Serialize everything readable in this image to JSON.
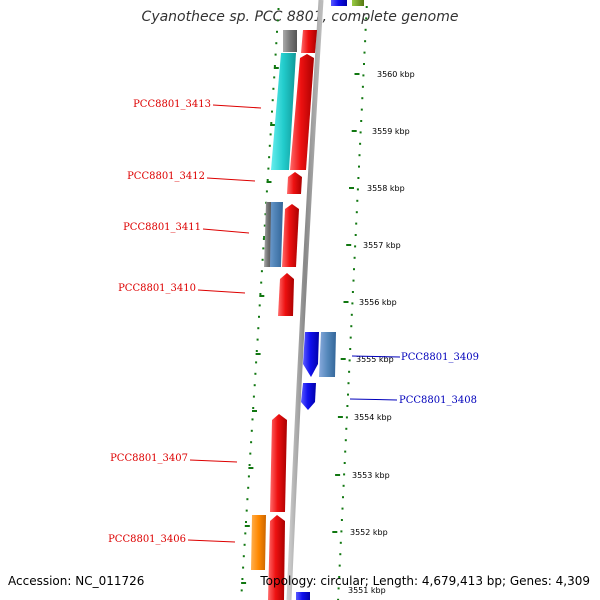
{
  "title": "Cyanothece sp. PCC 8801, complete genome",
  "footer": {
    "accession": "Accession: NC_011726",
    "topology": "Topology: circular; Length: 4,679,413 bp; Genes: 4,309"
  },
  "kbp_ticks": [
    {
      "label": "3560 kbp",
      "kbp": 3560
    },
    {
      "label": "3559 kbp",
      "kbp": 3559
    },
    {
      "label": "3558 kbp",
      "kbp": 3558
    },
    {
      "label": "3557 kbp",
      "kbp": 3557
    },
    {
      "label": "3556 kbp",
      "kbp": 3556
    },
    {
      "label": "3555 kbp",
      "kbp": 3555
    },
    {
      "label": "3554 kbp",
      "kbp": 3554
    },
    {
      "label": "3553 kbp",
      "kbp": 3553
    },
    {
      "label": "3552 kbp",
      "kbp": 3552
    },
    {
      "label": "3551 kbp",
      "kbp": 3551
    }
  ],
  "gene_labels": [
    {
      "text": "PCC8801_3413",
      "strand": "reverse",
      "color": "#dd0000"
    },
    {
      "text": "PCC8801_3412",
      "strand": "reverse",
      "color": "#dd0000"
    },
    {
      "text": "PCC8801_3411",
      "strand": "reverse",
      "color": "#dd0000"
    },
    {
      "text": "PCC8801_3410",
      "strand": "reverse",
      "color": "#dd0000"
    },
    {
      "text": "PCC8801_3409",
      "strand": "forward",
      "color": "#0000bb"
    },
    {
      "text": "PCC8801_3408",
      "strand": "forward",
      "color": "#0000bb"
    },
    {
      "text": "PCC8801_3407",
      "strand": "reverse",
      "color": "#dd0000"
    },
    {
      "text": "PCC8801_3406",
      "strand": "reverse",
      "color": "#dd0000"
    }
  ],
  "colors": {
    "reverse_gene": "#ee1111",
    "forward_gene": "#1111ee",
    "cyan_feature": "#22cccc",
    "steelblue_feature": "#5588bb",
    "gray_feature": "#777777",
    "orange_feature": "#ff8800",
    "green_feature": "#669922",
    "backbone": "#999999",
    "tick_marks": "#117711"
  }
}
